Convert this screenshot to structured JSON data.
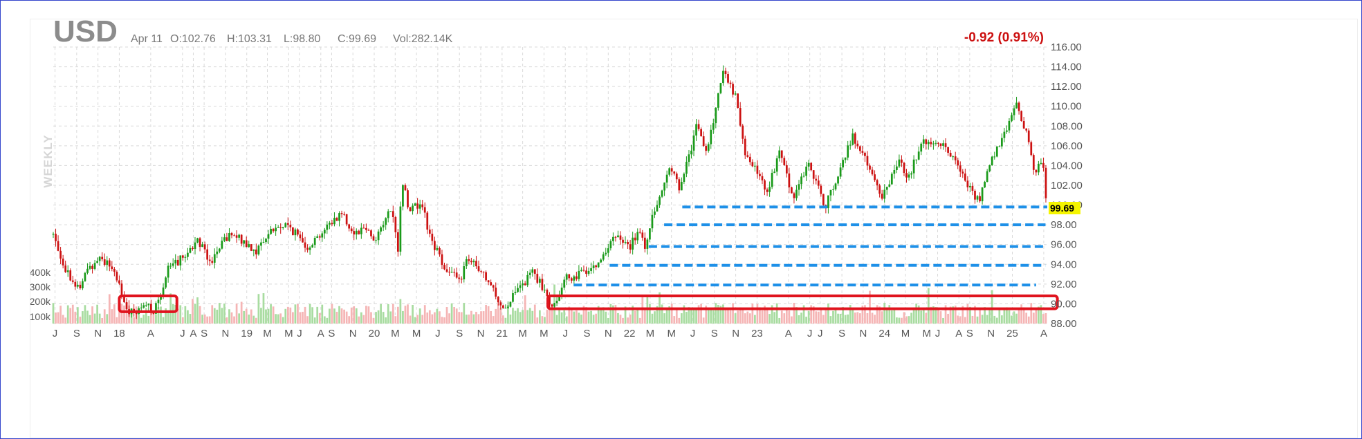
{
  "header": {
    "symbol": "USD",
    "date": "Apr 11",
    "open": "O:102.76",
    "high": "H:103.31",
    "low": "L:98.80",
    "close": "C:99.69",
    "volume": "Vol:282.14K",
    "change": "-0.92 (0.91%)",
    "period_label": "WEEKLY"
  },
  "colors": {
    "up": "#1a9a1a",
    "down": "#cc1111",
    "vol_up": "#a8dca0",
    "vol_down": "#f5b5b5",
    "support": "#1e90e8",
    "highlight_box": "#e0141e",
    "price_tag": "#f5f500",
    "grid": "#d9d9d9"
  },
  "chart_data": {
    "type": "candlestick",
    "interval": "weekly",
    "y_axis": {
      "min": 88,
      "max": 116,
      "ticks": [
        "116.00",
        "114.00",
        "112.00",
        "110.00",
        "108.00",
        "106.00",
        "104.00",
        "102.00",
        "100.00",
        "98.00",
        "96.00",
        "94.00",
        "92.00",
        "90.00",
        "88.00"
      ]
    },
    "last_price": "99.69",
    "volume_axis_ticks": [
      "400k",
      "300k",
      "200k",
      "100k"
    ],
    "x_ticks": [
      {
        "label": "J",
        "date": "2017-07"
      },
      {
        "label": "S",
        "date": "2017-09"
      },
      {
        "label": "N",
        "date": "2017-11"
      },
      {
        "label": "18",
        "date": "2018-01"
      },
      {
        "label": "A",
        "date": "2018-04"
      },
      {
        "label": "J",
        "date": "2018-07"
      },
      {
        "label": "A",
        "date": "2018-08"
      },
      {
        "label": "S",
        "date": "2018-09"
      },
      {
        "label": "N",
        "date": "2018-11"
      },
      {
        "label": "19",
        "date": "2019-01"
      },
      {
        "label": "M",
        "date": "2019-03"
      },
      {
        "label": "M",
        "date": "2019-05"
      },
      {
        "label": "J",
        "date": "2019-06"
      },
      {
        "label": "A",
        "date": "2019-08"
      },
      {
        "label": "S",
        "date": "2019-09"
      },
      {
        "label": "N",
        "date": "2019-11"
      },
      {
        "label": "20",
        "date": "2020-01"
      },
      {
        "label": "M",
        "date": "2020-03"
      },
      {
        "label": "M",
        "date": "2020-05"
      },
      {
        "label": "J",
        "date": "2020-07"
      },
      {
        "label": "S",
        "date": "2020-09"
      },
      {
        "label": "N",
        "date": "2020-11"
      },
      {
        "label": "21",
        "date": "2021-01"
      },
      {
        "label": "M",
        "date": "2021-03"
      },
      {
        "label": "M",
        "date": "2021-05"
      },
      {
        "label": "J",
        "date": "2021-07"
      },
      {
        "label": "S",
        "date": "2021-09"
      },
      {
        "label": "N",
        "date": "2021-11"
      },
      {
        "label": "22",
        "date": "2022-01"
      },
      {
        "label": "M",
        "date": "2022-03"
      },
      {
        "label": "M",
        "date": "2022-05"
      },
      {
        "label": "J",
        "date": "2022-07"
      },
      {
        "label": "S",
        "date": "2022-09"
      },
      {
        "label": "N",
        "date": "2022-11"
      },
      {
        "label": "23",
        "date": "2023-01"
      },
      {
        "label": "A",
        "date": "2023-04"
      },
      {
        "label": "J",
        "date": "2023-06"
      },
      {
        "label": "J",
        "date": "2023-07"
      },
      {
        "label": "S",
        "date": "2023-09"
      },
      {
        "label": "N",
        "date": "2023-11"
      },
      {
        "label": "24",
        "date": "2024-01"
      },
      {
        "label": "M",
        "date": "2024-03"
      },
      {
        "label": "M",
        "date": "2024-05"
      },
      {
        "label": "J",
        "date": "2024-06"
      },
      {
        "label": "A",
        "date": "2024-08"
      },
      {
        "label": "S",
        "date": "2024-09"
      },
      {
        "label": "N",
        "date": "2024-11"
      },
      {
        "label": "25",
        "date": "2025-01"
      },
      {
        "label": "A",
        "date": "2025-04"
      }
    ],
    "price_path": [
      [
        "2017-06-26",
        97.0
      ],
      [
        "2017-08-01",
        93.5
      ],
      [
        "2017-09-08",
        91.4
      ],
      [
        "2017-10-01",
        93.4
      ],
      [
        "2017-11-06",
        94.8
      ],
      [
        "2017-12-20",
        93.2
      ],
      [
        "2018-01-26",
        89.2
      ],
      [
        "2018-02-16",
        88.9
      ],
      [
        "2018-03-20",
        89.8
      ],
      [
        "2018-04-13",
        89.3
      ],
      [
        "2018-05-20",
        93.5
      ],
      [
        "2018-06-29",
        94.6
      ],
      [
        "2018-08-15",
        96.5
      ],
      [
        "2018-09-20",
        94.3
      ],
      [
        "2018-11-12",
        97.0
      ],
      [
        "2018-12-15",
        96.5
      ],
      [
        "2019-01-30",
        95.3
      ],
      [
        "2019-03-08",
        97.4
      ],
      [
        "2019-04-26",
        98.0
      ],
      [
        "2019-06-25",
        95.8
      ],
      [
        "2019-09-30",
        99.3
      ],
      [
        "2019-11-01",
        97.2
      ],
      [
        "2019-12-10",
        97.8
      ],
      [
        "2020-01-01",
        96.4
      ],
      [
        "2020-02-20",
        99.7
      ],
      [
        "2020-03-09",
        95.0
      ],
      [
        "2020-03-20",
        102.8
      ],
      [
        "2020-04-10",
        99.5
      ],
      [
        "2020-05-15",
        100.3
      ],
      [
        "2020-06-10",
        96.5
      ],
      [
        "2020-07-30",
        93.3
      ],
      [
        "2020-09-01",
        92.3
      ],
      [
        "2020-09-25",
        94.6
      ],
      [
        "2020-11-20",
        92.3
      ],
      [
        "2021-01-06",
        89.5
      ],
      [
        "2021-01-29",
        90.5
      ],
      [
        "2021-03-31",
        93.3
      ],
      [
        "2021-05-25",
        89.8
      ],
      [
        "2021-07-02",
        92.5
      ],
      [
        "2021-08-20",
        93.2
      ],
      [
        "2021-10-01",
        94.2
      ],
      [
        "2021-11-24",
        96.8
      ],
      [
        "2021-12-31",
        95.7
      ],
      [
        "2022-01-28",
        97.3
      ],
      [
        "2022-02-15",
        95.7
      ],
      [
        "2022-03-07",
        99.0
      ],
      [
        "2022-04-28",
        103.8
      ],
      [
        "2022-05-27",
        101.6
      ],
      [
        "2022-07-14",
        108.3
      ],
      [
        "2022-08-10",
        105.1
      ],
      [
        "2022-09-27",
        114.0
      ],
      [
        "2022-11-04",
        110.5
      ],
      [
        "2022-11-30",
        105.0
      ],
      [
        "2023-01-31",
        101.5
      ],
      [
        "2023-03-08",
        105.3
      ],
      [
        "2023-04-14",
        100.8
      ],
      [
        "2023-05-31",
        104.3
      ],
      [
        "2023-07-14",
        99.8
      ],
      [
        "2023-10-03",
        107.0
      ],
      [
        "2023-12-27",
        100.8
      ],
      [
        "2024-02-14",
        104.9
      ],
      [
        "2024-03-08",
        102.6
      ],
      [
        "2024-04-16",
        106.4
      ],
      [
        "2024-06-26",
        105.9
      ],
      [
        "2024-09-27",
        100.3
      ],
      [
        "2024-10-31",
        104.2
      ],
      [
        "2025-01-13",
        110.0
      ],
      [
        "2025-02-14",
        107.0
      ],
      [
        "2025-03-03",
        103.5
      ],
      [
        "2025-03-28",
        104.3
      ],
      [
        "2025-04-11",
        99.69
      ]
    ],
    "support_lines": [
      {
        "y": 99.8,
        "from": "2022-06-01",
        "to": "2025-04-11"
      },
      {
        "y": 98.0,
        "from": "2022-04-10",
        "to": "2025-04-06"
      },
      {
        "y": 95.8,
        "from": "2022-02-25",
        "to": "2025-04-06"
      },
      {
        "y": 93.9,
        "from": "2021-11-05",
        "to": "2025-04-06"
      },
      {
        "y": 91.9,
        "from": "2021-07-25",
        "to": "2025-03-10"
      }
    ],
    "highlight_boxes": [
      {
        "from": "2018-01-01",
        "to": "2018-06-15",
        "low": 89.2,
        "high": 90.8
      },
      {
        "from": "2021-05-12",
        "to": "2025-05-10",
        "low": 89.5,
        "high": 90.8
      }
    ]
  }
}
